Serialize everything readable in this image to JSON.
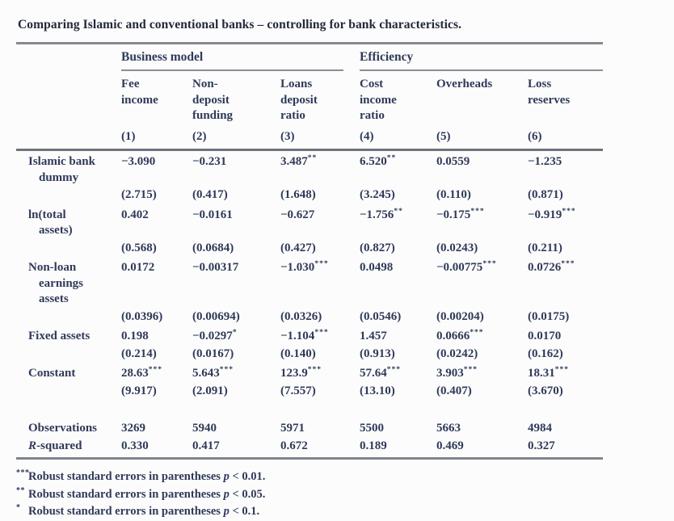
{
  "title": "Comparing Islamic and conventional banks – controlling for bank characteristics.",
  "colors": {
    "text": "#2f3a58",
    "title": "#23283a",
    "rule_heavy": "#6e737b",
    "rule_light": "#8a8f97",
    "background": "#fcfcfd"
  },
  "table": {
    "groups": [
      {
        "label": "Business model",
        "span": 3
      },
      {
        "label": "Efficiency",
        "span": 3
      }
    ],
    "columns": [
      {
        "label": "Fee\nincome",
        "number": "(1)"
      },
      {
        "label": "Non-\ndeposit\nfunding",
        "number": "(2)"
      },
      {
        "label": "Loans\ndeposit\nratio",
        "number": "(3)"
      },
      {
        "label": "Cost\nincome\nratio",
        "number": "(4)"
      },
      {
        "label": "Overheads",
        "number": "(5)"
      },
      {
        "label": "Loss\nreserves",
        "number": "(6)"
      }
    ],
    "rows": [
      {
        "label": "Islamic bank\ndummy",
        "coef": [
          {
            "v": "−3.090",
            "stars": ""
          },
          {
            "v": "−0.231",
            "stars": ""
          },
          {
            "v": "3.487",
            "stars": "**"
          },
          {
            "v": "6.520",
            "stars": "**"
          },
          {
            "v": "0.0559",
            "stars": ""
          },
          {
            "v": "−1.235",
            "stars": ""
          }
        ],
        "se": [
          "(2.715)",
          "(0.417)",
          "(1.648)",
          "(3.245)",
          "(0.110)",
          "(0.871)"
        ]
      },
      {
        "label": "ln(total\nassets)",
        "coef": [
          {
            "v": "0.402",
            "stars": ""
          },
          {
            "v": "−0.0161",
            "stars": ""
          },
          {
            "v": "−0.627",
            "stars": ""
          },
          {
            "v": "−1.756",
            "stars": "**"
          },
          {
            "v": "−0.175",
            "stars": "***"
          },
          {
            "v": "−0.919",
            "stars": "***"
          }
        ],
        "se": [
          "(0.568)",
          "(0.0684)",
          "(0.427)",
          "(0.827)",
          "(0.0243)",
          "(0.211)"
        ]
      },
      {
        "label": "Non-loan\nearnings\nassets",
        "coef": [
          {
            "v": "0.0172",
            "stars": ""
          },
          {
            "v": "−0.00317",
            "stars": ""
          },
          {
            "v": "−1.030",
            "stars": "***"
          },
          {
            "v": "0.0498",
            "stars": ""
          },
          {
            "v": "−0.00775",
            "stars": "***"
          },
          {
            "v": "0.0726",
            "stars": "***"
          }
        ],
        "se": [
          "(0.0396)",
          "(0.00694)",
          "(0.0326)",
          "(0.0546)",
          "(0.00204)",
          "(0.0175)"
        ]
      },
      {
        "label": "Fixed assets",
        "coef": [
          {
            "v": "0.198",
            "stars": ""
          },
          {
            "v": "−0.0297",
            "stars": "*"
          },
          {
            "v": "−1.104",
            "stars": "***"
          },
          {
            "v": "1.457",
            "stars": ""
          },
          {
            "v": "0.0666",
            "stars": "***"
          },
          {
            "v": "0.0170",
            "stars": ""
          }
        ],
        "se": [
          "(0.214)",
          "(0.0167)",
          "(0.140)",
          "(0.913)",
          "(0.0242)",
          "(0.162)"
        ]
      },
      {
        "label": "Constant",
        "coef": [
          {
            "v": "28.63",
            "stars": "***"
          },
          {
            "v": "5.643",
            "stars": "***"
          },
          {
            "v": "123.9",
            "stars": "***"
          },
          {
            "v": "57.64",
            "stars": "***"
          },
          {
            "v": "3.903",
            "stars": "***"
          },
          {
            "v": "18.31",
            "stars": "***"
          }
        ],
        "se": [
          "(9.917)",
          "(2.091)",
          "(7.557)",
          "(13.10)",
          "(0.407)",
          "(3.670)"
        ]
      }
    ],
    "stats": [
      {
        "label_italic": "",
        "label": "Observations",
        "values": [
          "3269",
          "5940",
          "5971",
          "5500",
          "5663",
          "4984"
        ]
      },
      {
        "label_italic": "R",
        "label": "-squared",
        "values": [
          "0.330",
          "0.417",
          "0.672",
          "0.189",
          "0.469",
          "0.327"
        ]
      }
    ]
  },
  "footnotes": [
    {
      "marker": "***",
      "text": "Robust standard errors in parentheses",
      "p": "p",
      "threshold": "< 0.01."
    },
    {
      "marker": "**",
      "text": "Robust standard errors in parentheses",
      "p": "p",
      "threshold": "< 0.05."
    },
    {
      "marker": "*",
      "text": "Robust standard errors in parentheses",
      "p": "p",
      "threshold": "< 0.1."
    }
  ]
}
